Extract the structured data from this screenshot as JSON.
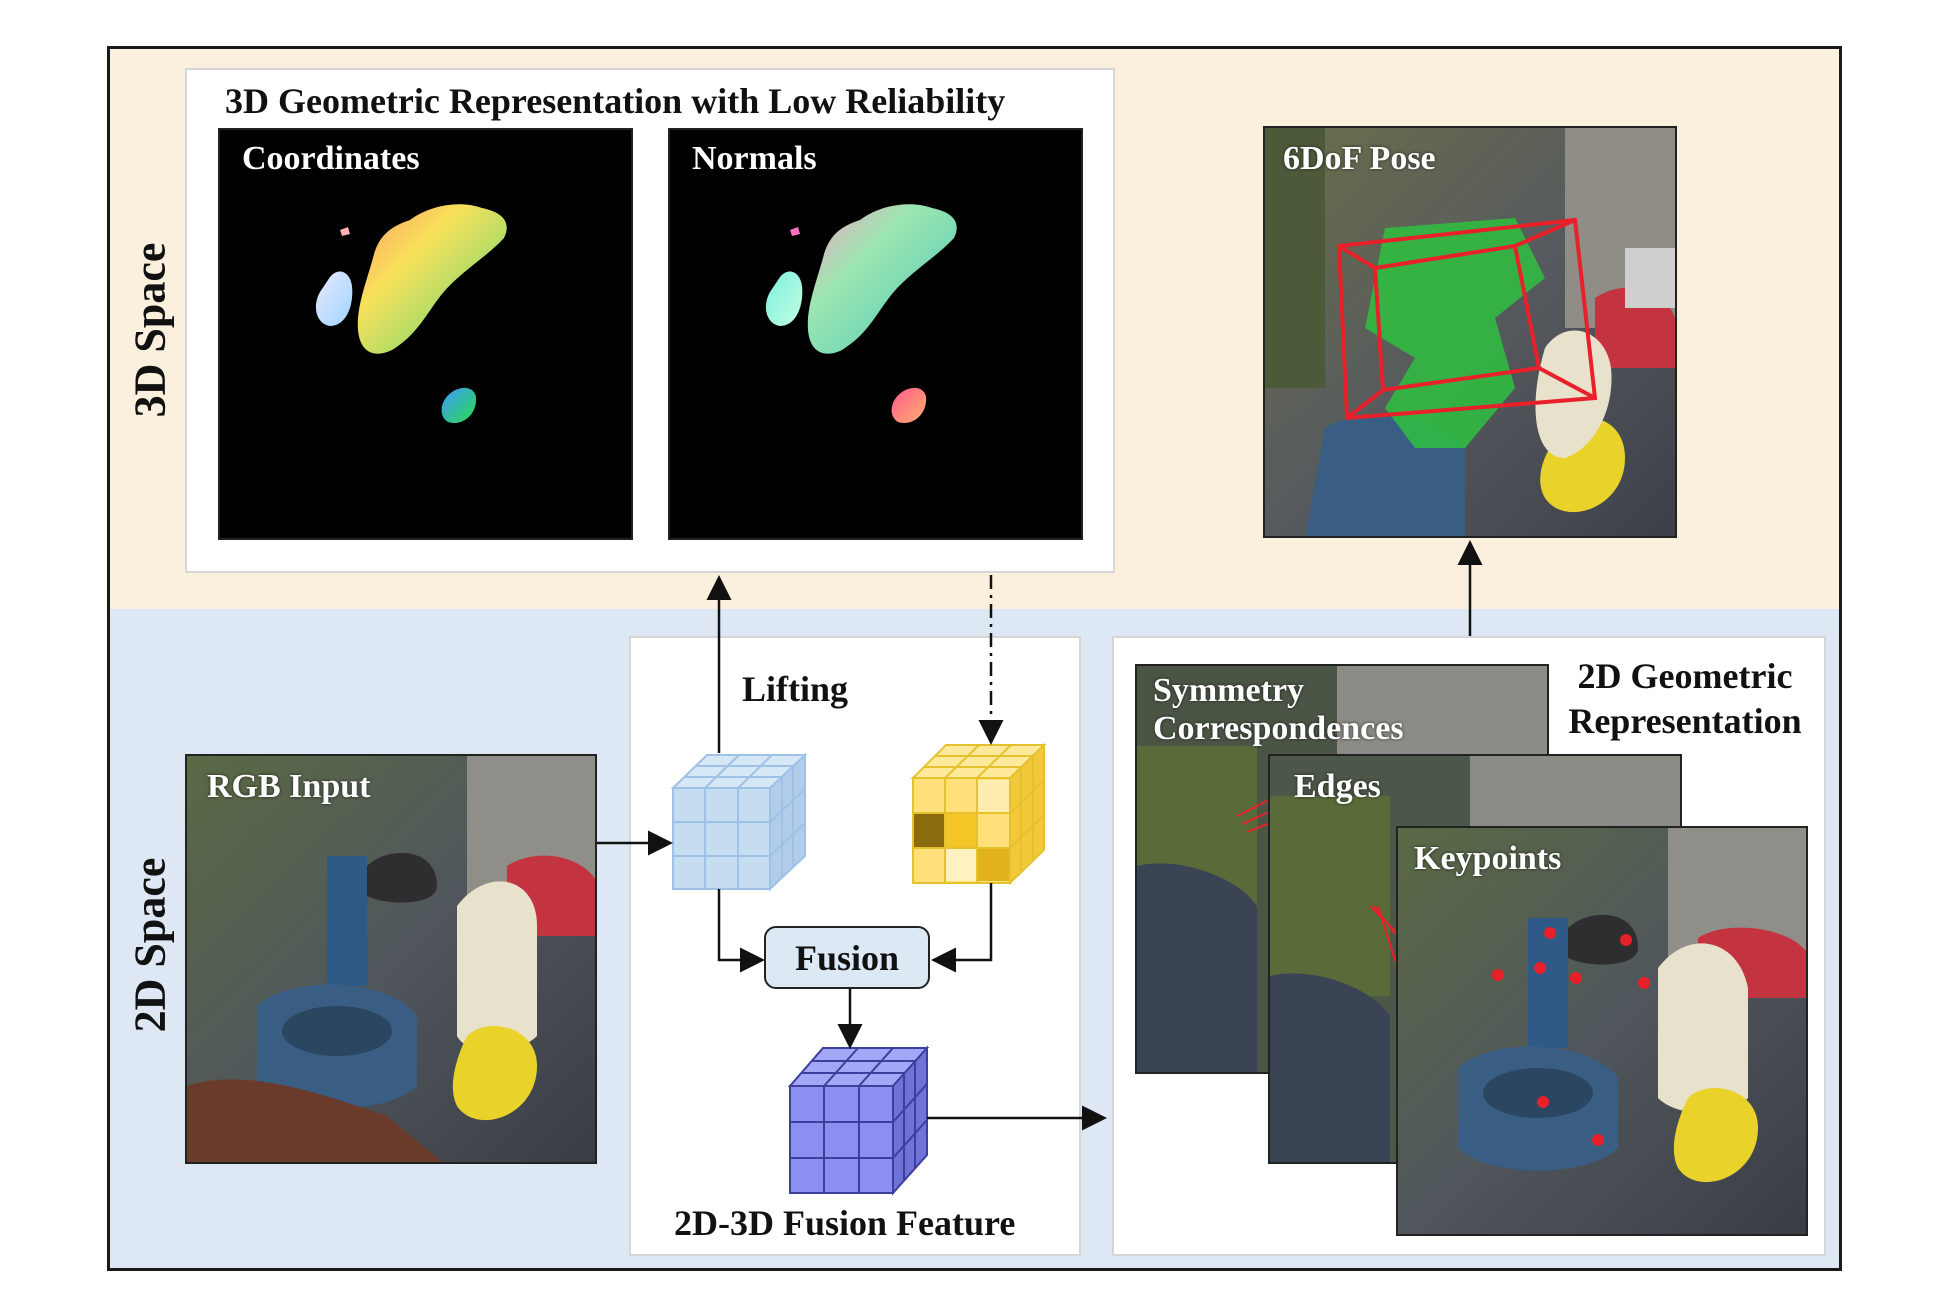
{
  "labels": {
    "space_3d": "3D Space",
    "space_2d": "2D Space"
  },
  "geo3d": {
    "title": "3D Geometric Representation with Low Reliability",
    "coordinates_label": "Coordinates",
    "normals_label": "Normals"
  },
  "pose": {
    "label": "6DoF Pose"
  },
  "rgb": {
    "label": "RGB Input"
  },
  "fusion": {
    "lifting_label": "Lifting",
    "fusion_label": "Fusion",
    "feature_label": "2D-3D Fusion Feature"
  },
  "geo2d": {
    "title_line1": "2D Geometric",
    "title_line2": "Representation",
    "symmetry_line1": "Symmetry",
    "symmetry_line2": "Correspondences",
    "edges_label": "Edges",
    "keypoints_label": "Keypoints"
  },
  "colors": {
    "band_3d": "#faf0dd",
    "band_2d": "#dde8f4",
    "cube_blue": "#bcd6ee",
    "cube_yellow": "#ffd84a",
    "cube_purple": "#8b8ff0",
    "pose_box": "#e8202a",
    "object_green": "#2fbf3f"
  }
}
